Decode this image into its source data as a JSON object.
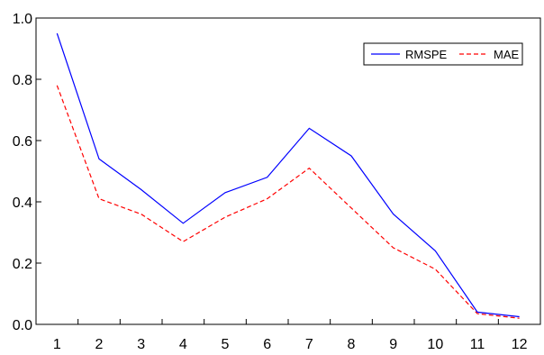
{
  "chart_data": {
    "type": "line",
    "title": "",
    "xlabel": "",
    "ylabel": "",
    "x": [
      1,
      2,
      3,
      4,
      5,
      6,
      7,
      8,
      9,
      10,
      11,
      12
    ],
    "x_tick_labels": [
      "1",
      "2",
      "3",
      "4",
      "5",
      "6",
      "7",
      "8",
      "9",
      "10",
      "11",
      "12"
    ],
    "y_tick_labels": [
      "0.0",
      "0.2",
      "0.4",
      "0.6",
      "0.8",
      "1.0"
    ],
    "y_ticks": [
      0.0,
      0.2,
      0.4,
      0.6,
      0.8,
      1.0
    ],
    "ylim": [
      0.0,
      1.0
    ],
    "xlim": [
      0.5,
      12.5
    ],
    "grid": false,
    "legend_position": "top-right",
    "series": [
      {
        "name": "RMSPE",
        "color": "#0000ff",
        "dash": "solid",
        "values": [
          0.95,
          0.54,
          0.44,
          0.33,
          0.43,
          0.48,
          0.64,
          0.55,
          0.36,
          0.24,
          0.04,
          0.025
        ]
      },
      {
        "name": "MAE",
        "color": "#ff0000",
        "dash": "dashed",
        "values": [
          0.78,
          0.41,
          0.36,
          0.27,
          0.35,
          0.41,
          0.51,
          0.38,
          0.25,
          0.18,
          0.035,
          0.02
        ]
      }
    ]
  }
}
